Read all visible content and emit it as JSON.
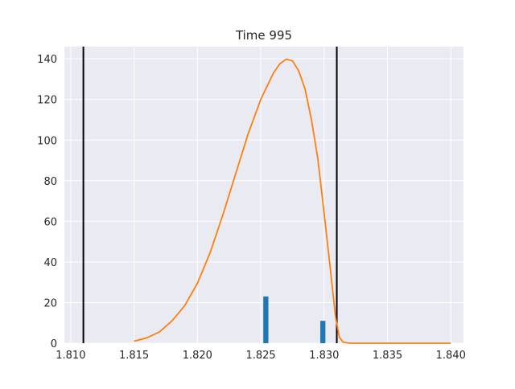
{
  "chart_data": {
    "type": "histogram",
    "title": "Time 995",
    "xlabel": "",
    "ylabel": "",
    "xlim": [
      1.8095,
      1.841
    ],
    "ylim": [
      0,
      146
    ],
    "x_ticks": [
      1.81,
      1.815,
      1.82,
      1.825,
      1.83,
      1.835,
      1.84
    ],
    "x_tick_labels": [
      "1.810",
      "1.815",
      "1.820",
      "1.825",
      "1.830",
      "1.835",
      "1.840"
    ],
    "y_ticks": [
      0,
      20,
      40,
      60,
      80,
      100,
      120,
      140
    ],
    "y_tick_labels": [
      "0",
      "20",
      "40",
      "60",
      "80",
      "100",
      "120",
      "140"
    ],
    "grid": true,
    "style": {
      "background": "#eaeaf2",
      "grid_color": "#ffffff",
      "bar_color": "#1f77b4",
      "curve_color": "#ff7f0e",
      "vline_color": "#000000"
    },
    "bars": [
      {
        "x_start": 1.8252,
        "x_end": 1.8256,
        "height": 23
      },
      {
        "x_start": 1.8297,
        "x_end": 1.8301,
        "height": 11
      }
    ],
    "vlines": [
      1.811,
      1.831
    ],
    "curve": {
      "name": "",
      "points": [
        [
          1.815,
          1.0
        ],
        [
          1.816,
          2.6
        ],
        [
          1.817,
          5.5
        ],
        [
          1.818,
          11.0
        ],
        [
          1.819,
          18.5
        ],
        [
          1.82,
          29.5
        ],
        [
          1.821,
          44.5
        ],
        [
          1.822,
          63.0
        ],
        [
          1.823,
          83.0
        ],
        [
          1.824,
          103.0
        ],
        [
          1.825,
          120.0
        ],
        [
          1.826,
          133.0
        ],
        [
          1.8265,
          137.5
        ],
        [
          1.827,
          139.8
        ],
        [
          1.8275,
          139.0
        ],
        [
          1.828,
          134.0
        ],
        [
          1.8285,
          125.0
        ],
        [
          1.829,
          110.0
        ],
        [
          1.8295,
          91.0
        ],
        [
          1.83,
          64.0
        ],
        [
          1.8305,
          36.0
        ],
        [
          1.8309,
          13.0
        ],
        [
          1.8312,
          3.0
        ],
        [
          1.8315,
          0.5
        ],
        [
          1.832,
          0.0
        ],
        [
          1.835,
          0.0
        ],
        [
          1.84,
          0.0
        ]
      ]
    }
  }
}
